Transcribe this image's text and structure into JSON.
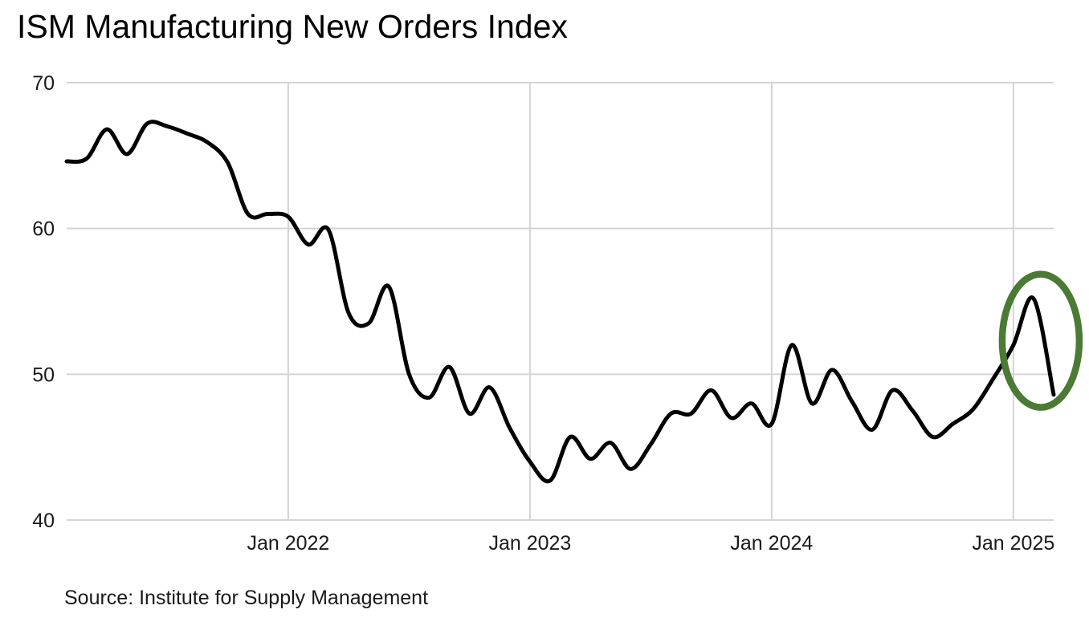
{
  "title": "ISM Manufacturing New Orders Index",
  "source": "Source: Institute for Supply Management",
  "colors": {
    "background": "#ffffff",
    "line": "#000000",
    "grid": "#d4d4d4",
    "text": "#1a1a1a",
    "annotation": "#4a7a33"
  },
  "chart_data": {
    "type": "line",
    "title": "ISM Manufacturing New Orders Index",
    "xlabel": "",
    "ylabel": "",
    "ylim": [
      40,
      70
    ],
    "yticks": [
      40,
      50,
      60,
      70
    ],
    "grid": true,
    "legend": "none",
    "x": [
      "2021-02",
      "2021-03",
      "2021-04",
      "2021-05",
      "2021-06",
      "2021-07",
      "2021-08",
      "2021-09",
      "2021-10",
      "2021-11",
      "2021-12",
      "2022-01",
      "2022-02",
      "2022-03",
      "2022-04",
      "2022-05",
      "2022-06",
      "2022-07",
      "2022-08",
      "2022-09",
      "2022-10",
      "2022-11",
      "2022-12",
      "2023-01",
      "2023-02",
      "2023-03",
      "2023-04",
      "2023-05",
      "2023-06",
      "2023-07",
      "2023-08",
      "2023-09",
      "2023-10",
      "2023-11",
      "2023-12",
      "2024-01",
      "2024-02",
      "2024-03",
      "2024-04",
      "2024-05",
      "2024-06",
      "2024-07",
      "2024-08",
      "2024-09",
      "2024-10",
      "2024-11",
      "2024-12",
      "2025-01",
      "2025-02",
      "2025-03"
    ],
    "values": [
      64.6,
      64.8,
      66.8,
      65.1,
      67.2,
      67.0,
      66.5,
      65.9,
      64.5,
      61.0,
      61.0,
      60.8,
      58.9,
      59.9,
      54.2,
      53.5,
      56.0,
      50.0,
      48.4,
      50.5,
      47.3,
      49.1,
      46.3,
      44.0,
      42.7,
      45.7,
      44.2,
      45.3,
      43.5,
      45.2,
      47.3,
      47.3,
      48.9,
      47.0,
      48.0,
      46.6,
      52.0,
      48.0,
      50.3,
      48.1,
      46.2,
      48.9,
      47.5,
      45.7,
      46.6,
      47.6,
      49.7,
      52.0,
      55.2,
      48.6
    ],
    "xticks": [
      {
        "index": 11,
        "label": "Jan 2022"
      },
      {
        "index": 23,
        "label": "Jan 2023"
      },
      {
        "index": 35,
        "label": "Jan 2024"
      },
      {
        "index": 47,
        "label": "Jan 2025"
      }
    ],
    "annotation": {
      "shape": "ellipse",
      "color": "#4a7a33",
      "center_month": "2025-02",
      "center_value": 52.3,
      "note": "circle highlighting latest spike to 55.2 and drop to 48.6"
    }
  }
}
